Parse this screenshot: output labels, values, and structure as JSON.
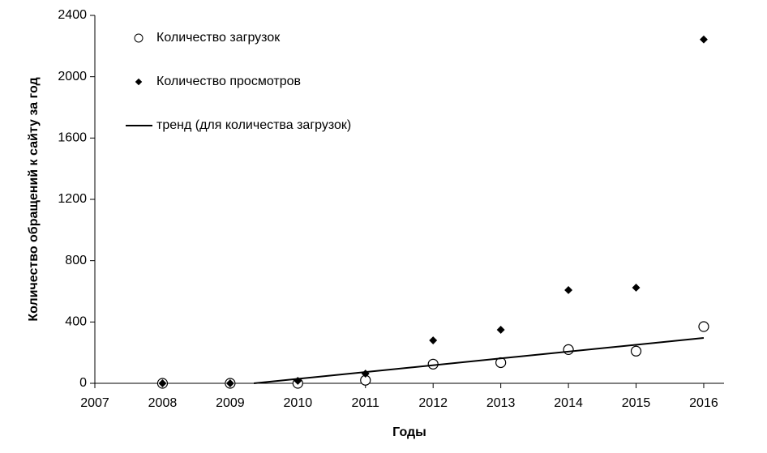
{
  "chart_data": {
    "type": "scatter",
    "xlabel": "Годы",
    "ylabel": "Количество обращений к сайту за год",
    "x": [
      2008,
      2009,
      2010,
      2011,
      2012,
      2013,
      2014,
      2015,
      2016
    ],
    "series": [
      {
        "name": "Количество загрузок",
        "color": "#000000",
        "marker": "open-circle",
        "values": [
          0,
          0,
          0,
          20,
          125,
          135,
          220,
          210,
          370
        ]
      },
      {
        "name": "Количество просмотров",
        "color": "#000000",
        "marker": "dot",
        "values": [
          0,
          0,
          16,
          63,
          280,
          349,
          608,
          624,
          2243
        ]
      },
      {
        "name": "тренд (для количества загрузок)",
        "color": "#000000",
        "marker": "line",
        "x": [
          2009.35,
          2016
        ],
        "values": [
          0,
          296
        ]
      }
    ],
    "xlim": [
      2007,
      2016.3
    ],
    "xticks": [
      2007,
      2008,
      2009,
      2010,
      2011,
      2012,
      2013,
      2014,
      2015,
      2016
    ],
    "ylim": [
      0,
      2400
    ],
    "yticks": [
      0,
      400,
      800,
      1200,
      1600,
      2000,
      2400
    ],
    "grid": false,
    "legend": "upper left"
  }
}
